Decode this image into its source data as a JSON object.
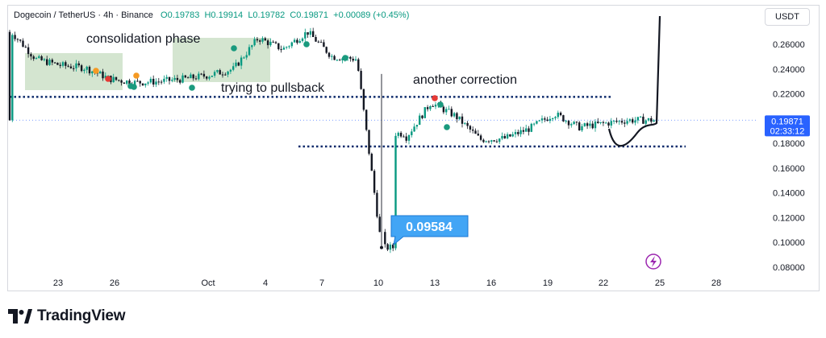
{
  "header": {
    "symbol": "Dogecoin / TetherUS · 4h · Binance",
    "open": "O0.19783",
    "high": "H0.19914",
    "low": "L0.19782",
    "close": "C0.19871",
    "change": "+0.00089 (+0.45%)"
  },
  "currency": "USDT",
  "branding": "TradingView",
  "colors": {
    "up": "#089981",
    "down": "#131722",
    "accent": "#2962ff",
    "zone": "#c9dfc4",
    "marker_red": "#e53935",
    "marker_orange": "#f59a23",
    "marker_teal": "#1a9a7e",
    "callout": "#42a5f5",
    "bolt": "#9c27b0"
  },
  "chart_data": {
    "type": "candlestick",
    "title": "",
    "xlabel": "",
    "ylabel": "",
    "ylim": [
      0.075,
      0.285
    ],
    "y_ticks": [
      "0.26000",
      "0.24000",
      "0.22000",
      "0.18000",
      "0.16000",
      "0.14000",
      "0.12000",
      "0.10000",
      "0.08000"
    ],
    "x_ticks": [
      "23",
      "26",
      "Oct",
      "4",
      "7",
      "10",
      "13",
      "16",
      "19",
      "22",
      "25",
      "28"
    ],
    "current_price": "0.19871",
    "countdown": "02:33:12",
    "low_callout": "0.09584",
    "annotations": [
      {
        "text": "consolidation phase"
      },
      {
        "text": "trying to pullsback"
      },
      {
        "text": "another correction"
      }
    ],
    "levels": [
      0.2175,
      0.1775
    ],
    "price_path": [
      {
        "x": 0,
        "y": 0.27
      },
      {
        "x": 1,
        "y": 0.248
      },
      {
        "x": 2,
        "y": 0.243
      },
      {
        "x": 3,
        "y": 0.241
      },
      {
        "x": 4,
        "y": 0.232
      },
      {
        "x": 5,
        "y": 0.229
      },
      {
        "x": 6,
        "y": 0.23
      },
      {
        "x": 7,
        "y": 0.232
      },
      {
        "x": 8,
        "y": 0.235
      },
      {
        "x": 9,
        "y": 0.24
      },
      {
        "x": 10,
        "y": 0.265
      },
      {
        "x": 11,
        "y": 0.256
      },
      {
        "x": 12,
        "y": 0.27
      },
      {
        "x": 13,
        "y": 0.25
      },
      {
        "x": 14,
        "y": 0.248
      },
      {
        "x": 15,
        "y": 0.0958
      },
      {
        "x": 15.5,
        "y": 0.188
      },
      {
        "x": 16,
        "y": 0.185
      },
      {
        "x": 17,
        "y": 0.213
      },
      {
        "x": 18,
        "y": 0.202
      },
      {
        "x": 19,
        "y": 0.183
      },
      {
        "x": 20,
        "y": 0.184
      },
      {
        "x": 21,
        "y": 0.192
      },
      {
        "x": 22,
        "y": 0.204
      },
      {
        "x": 23,
        "y": 0.193
      },
      {
        "x": 24,
        "y": 0.196
      },
      {
        "x": 25,
        "y": 0.1987
      }
    ]
  }
}
